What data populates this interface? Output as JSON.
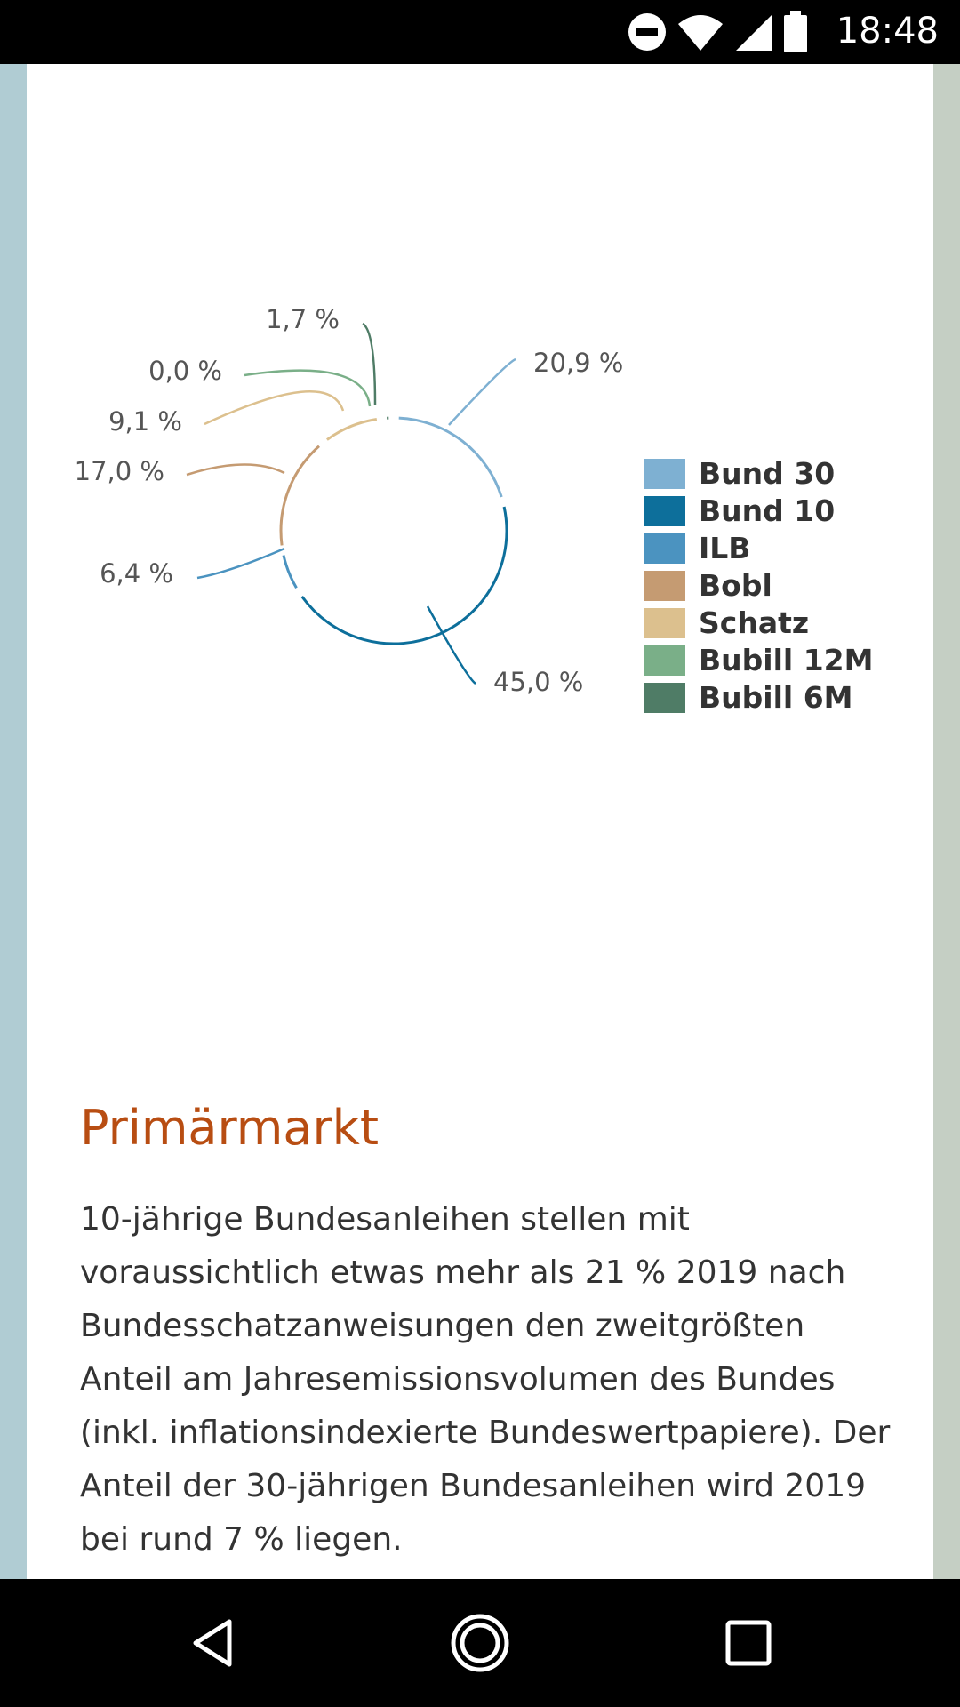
{
  "status_bar": {
    "time": "18:48",
    "icons": [
      "do-not-disturb-icon",
      "wifi-icon",
      "signal-icon",
      "battery-icon"
    ]
  },
  "chart_data": {
    "type": "pie",
    "title": "",
    "categories": [
      "Bund 30",
      "Bund 10",
      "ILB",
      "Bobl",
      "Schatz",
      "Bubill 12M",
      "Bubill 6M"
    ],
    "values": [
      20.9,
      45.0,
      6.4,
      17.0,
      9.1,
      0.0,
      1.7
    ],
    "value_labels": [
      "20,9 %",
      "45,0 %",
      "6,4 %",
      "17,0 %",
      "9,1 %",
      "0,0 %",
      "1,7 %"
    ],
    "colors": [
      "#7eb0d2",
      "#0d6f9b",
      "#4b93c0",
      "#c59b72",
      "#dcc08e",
      "#7aaf88",
      "#4f7c66"
    ],
    "legend": "right"
  },
  "article": {
    "heading": "Primärmarkt",
    "paragraph": "10-jährige Bundesanleihen stellen mit voraussichtlich etwas mehr als 21 % 2019 nach Bundesschatzanweisungen den zweitgrößten Anteil am Jahresemissionsvolumen des Bundes (inkl. inflationsindexierte Bundeswertpapiere). Der Anteil der 30-jährigen Bundesanleihen wird 2019 bei rund 7 % liegen."
  },
  "nav_bar": {
    "buttons": [
      "back-icon",
      "home-icon",
      "recents-icon"
    ]
  }
}
